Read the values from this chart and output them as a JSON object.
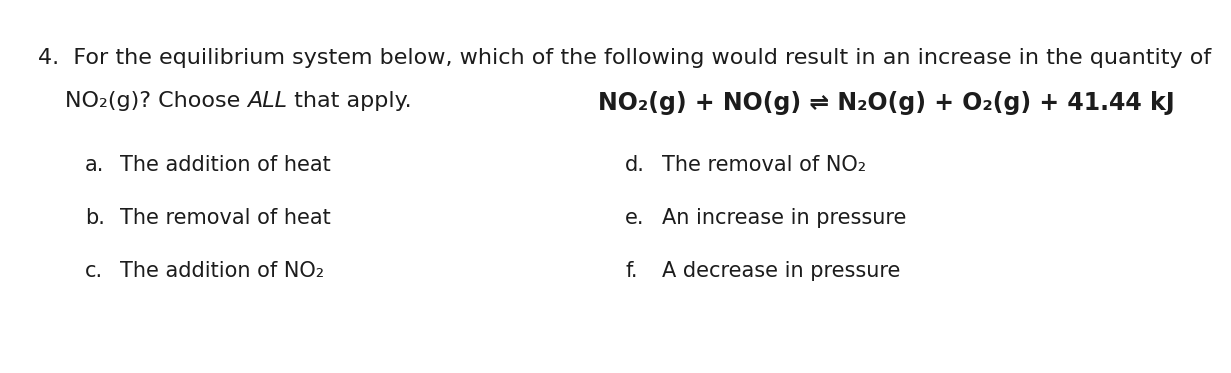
{
  "background_color": "#ffffff",
  "line1": "4.  For the equilibrium system below, which of the following would result in an increase in the quantity of",
  "line2_pre": "NO₂(g)? Choose ",
  "line2_italic": "ALL",
  "line2_post": " that apply.",
  "equation": "NO₂(g) + NO(g) ⇌ N₂O(g) + O₂(g) + 41.44 kJ",
  "options_left": [
    {
      "label": "a.",
      "text": "The addition of heat"
    },
    {
      "label": "b.",
      "text": "The removal of heat"
    },
    {
      "label": "c.",
      "text": "The addition of NO₂"
    }
  ],
  "options_right": [
    {
      "label": "d.",
      "text": "The removal of NO₂"
    },
    {
      "label": "e.",
      "text": "An increase in pressure"
    },
    {
      "label": "f.",
      "text": "A decrease in pressure"
    }
  ],
  "font_size_main": 16,
  "font_size_options": 15,
  "font_size_equation": 17,
  "text_color": "#1c1c1c"
}
